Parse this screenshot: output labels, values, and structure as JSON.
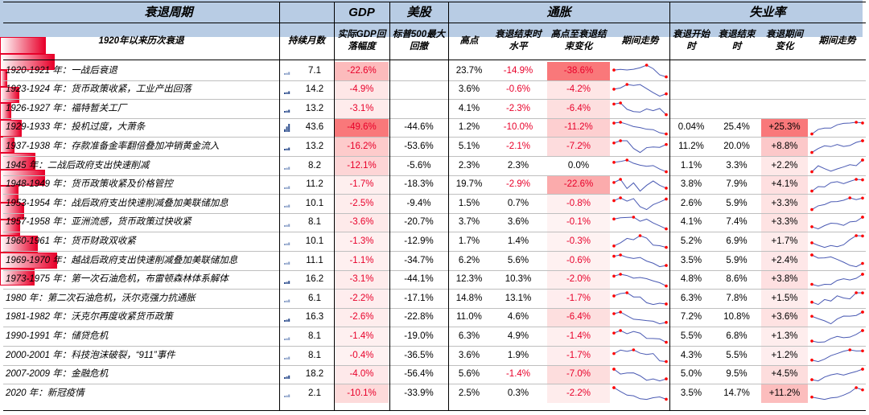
{
  "header": {
    "groups": [
      "衰退周期",
      "GDP",
      "美股",
      "通胀",
      "失业率"
    ],
    "columns": [
      "1920年以来历次衰退",
      "持续月数",
      "实际GDP回落幅度",
      "标普500最大回撤",
      "高点",
      "衰退结束时水平",
      "高点至衰退结束变化",
      "期间走势",
      "衰退开始时",
      "衰退结束时",
      "衰退期间变化",
      "期间走势"
    ]
  },
  "colors": {
    "heat": "#f8696b",
    "bar": "#e8002a",
    "spark_line": "#4a5ab3",
    "spark_dot": "#ff0000",
    "header_bg": "#b8cce4"
  },
  "chart_data": {
    "type": "table",
    "columns": [
      "衰退",
      "持续月数",
      "实际GDP回落幅度",
      "标普500最大回撤",
      "通胀高点",
      "衰退结束时通胀",
      "高点至衰退结束变化",
      "衰退开始时失业率",
      "衰退结束时失业率",
      "衰退期间变化"
    ],
    "rows": [
      {
        "name": "1920-1921 年：一战后衰退",
        "months": "7.1",
        "gdp": "-22.6%",
        "spx": "",
        "inf_peak": "23.7%",
        "inf_end": "-14.9%",
        "inf_chg": "-38.6%",
        "u_start": "",
        "u_end": "",
        "u_chg": ""
      },
      {
        "name": "1923-1924 年：货币政策收紧，工业产出回落",
        "months": "14.2",
        "gdp": "-4.9%",
        "spx": "",
        "inf_peak": "3.6%",
        "inf_end": "-0.6%",
        "inf_chg": "-4.2%",
        "u_start": "",
        "u_end": "",
        "u_chg": ""
      },
      {
        "name": "1926-1927 年：福特暂关工厂",
        "months": "13.2",
        "gdp": "-3.1%",
        "spx": "",
        "inf_peak": "4.1%",
        "inf_end": "-2.3%",
        "inf_chg": "-6.4%",
        "u_start": "",
        "u_end": "",
        "u_chg": ""
      },
      {
        "name": "1929-1933 年：投机过度，大萧条",
        "months": "43.6",
        "gdp": "-49.6%",
        "spx": "-44.6%",
        "inf_peak": "1.2%",
        "inf_end": "-10.0%",
        "inf_chg": "-11.2%",
        "u_start": "0.04%",
        "u_end": "25.4%",
        "u_chg": "+25.3%"
      },
      {
        "name": "1937-1938 年：存款准备金率翻倍叠加冲销黄金流入",
        "months": "13.2",
        "gdp": "-16.2%",
        "spx": "-53.6%",
        "inf_peak": "5.1%",
        "inf_end": "-2.1%",
        "inf_chg": "-7.2%",
        "u_start": "11.2%",
        "u_end": "20.0%",
        "u_chg": "+8.8%"
      },
      {
        "name": "1945 年：二战后政府支出快速削减",
        "months": "8.2",
        "gdp": "-12.1%",
        "spx": "-5.6%",
        "inf_peak": "2.3%",
        "inf_end": "2.3%",
        "inf_chg": "0.0%",
        "u_start": "1.1%",
        "u_end": "3.3%",
        "u_chg": "+2.2%"
      },
      {
        "name": "1948-1949 年：货币政策收紧及价格管控",
        "months": "11.2",
        "gdp": "-1.7%",
        "spx": "-18.3%",
        "inf_peak": "19.7%",
        "inf_end": "-2.9%",
        "inf_chg": "-22.6%",
        "u_start": "3.8%",
        "u_end": "7.9%",
        "u_chg": "+4.1%"
      },
      {
        "name": "1953-1954 年：战后政府支出快速削减叠加美联储加息",
        "months": "10.1",
        "gdp": "-2.5%",
        "spx": "-9.4%",
        "inf_peak": "1.5%",
        "inf_end": "0.7%",
        "inf_chg": "-0.8%",
        "u_start": "2.6%",
        "u_end": "5.9%",
        "u_chg": "+3.3%"
      },
      {
        "name": "1957-1958 年：亚洲流感，货币政策过快收紧",
        "months": "8.1",
        "gdp": "-3.6%",
        "spx": "-20.7%",
        "inf_peak": "3.7%",
        "inf_end": "3.6%",
        "inf_chg": "-0.1%",
        "u_start": "4.1%",
        "u_end": "7.4%",
        "u_chg": "+3.3%"
      },
      {
        "name": "1960-1961 年：货币财政双收紧",
        "months": "10.1",
        "gdp": "-1.3%",
        "spx": "-12.9%",
        "inf_peak": "1.7%",
        "inf_end": "1.4%",
        "inf_chg": "-0.3%",
        "u_start": "5.2%",
        "u_end": "6.9%",
        "u_chg": "+1.7%"
      },
      {
        "name": "1969-1970 年：越战后政府支出快速削减叠加美联储加息",
        "months": "11.1",
        "gdp": "-1.1%",
        "spx": "-34.7%",
        "inf_peak": "6.2%",
        "inf_end": "5.6%",
        "inf_chg": "-0.6%",
        "u_start": "3.5%",
        "u_end": "5.9%",
        "u_chg": "+2.4%"
      },
      {
        "name": "1973-1975 年：第一次石油危机，布雷顿森林体系解体",
        "months": "16.2",
        "gdp": "-3.1%",
        "spx": "-44.1%",
        "inf_peak": "12.3%",
        "inf_end": "10.3%",
        "inf_chg": "-2.0%",
        "u_start": "4.8%",
        "u_end": "8.6%",
        "u_chg": "+3.8%"
      },
      {
        "name": "1980 年：第二次石油危机，沃尔克强力抗通胀",
        "months": "6.1",
        "gdp": "-2.2%",
        "spx": "-17.1%",
        "inf_peak": "14.8%",
        "inf_end": "13.1%",
        "inf_chg": "-1.7%",
        "u_start": "6.3%",
        "u_end": "7.8%",
        "u_chg": "+1.5%"
      },
      {
        "name": "1981-1982 年：沃克尔再度收紧货币政策",
        "months": "16.3",
        "gdp": "-2.6%",
        "spx": "-22.8%",
        "inf_peak": "11.0%",
        "inf_end": "4.6%",
        "inf_chg": "-6.4%",
        "u_start": "7.2%",
        "u_end": "10.8%",
        "u_chg": "+3.6%"
      },
      {
        "name": "1990-1991 年：储贷危机",
        "months": "8.1",
        "gdp": "-1.4%",
        "spx": "-19.0%",
        "inf_peak": "6.3%",
        "inf_end": "4.9%",
        "inf_chg": "-1.4%",
        "u_start": "5.5%",
        "u_end": "6.8%",
        "u_chg": "+1.3%"
      },
      {
        "name": "2000-2001 年：科技泡沫破裂，“911”事件",
        "months": "8.1",
        "gdp": "-0.4%",
        "spx": "-36.5%",
        "inf_peak": "3.6%",
        "inf_end": "1.9%",
        "inf_chg": "-1.7%",
        "u_start": "4.3%",
        "u_end": "5.5%",
        "u_chg": "+1.2%"
      },
      {
        "name": "2007-2009 年：金融危机",
        "months": "18.2",
        "gdp": "-4.0%",
        "spx": "-56.4%",
        "inf_peak": "5.6%",
        "inf_end": "-1.4%",
        "inf_chg": "-7.0%",
        "u_start": "5.0%",
        "u_end": "9.5%",
        "u_chg": "+4.5%"
      },
      {
        "name": "2020 年：新冠疫情",
        "months": "2.1",
        "gdp": "-10.1%",
        "spx": "-33.9%",
        "inf_peak": "2.5%",
        "inf_end": "0.3%",
        "inf_chg": "-2.2%",
        "u_start": "3.5%",
        "u_end": "14.7%",
        "u_chg": "+11.2%"
      }
    ]
  }
}
